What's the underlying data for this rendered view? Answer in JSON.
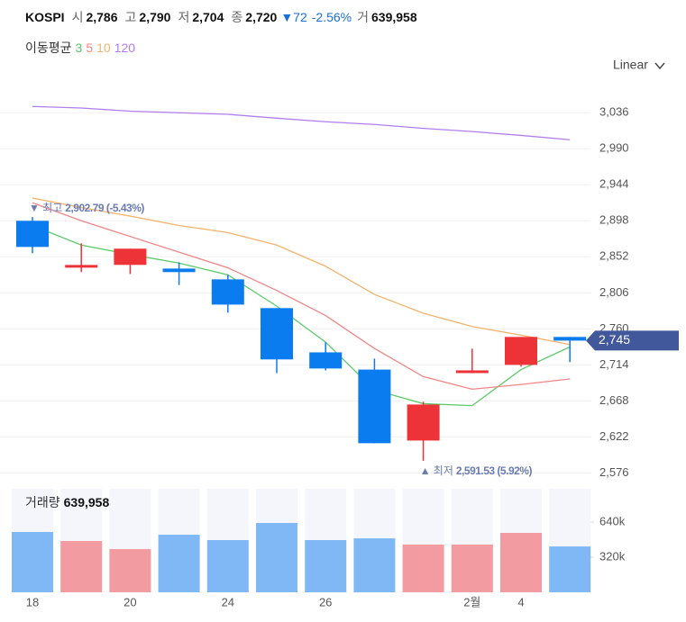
{
  "header": {
    "symbol": "KOSPI",
    "items": [
      {
        "label": "시",
        "value": "2,786"
      },
      {
        "label": "고",
        "value": "2,790"
      },
      {
        "label": "저",
        "value": "2,704"
      },
      {
        "label": "종",
        "value": "2,720"
      }
    ],
    "change": "▼72",
    "change_pct": "-2.56%",
    "volume_label": "거",
    "volume": "639,958"
  },
  "chart_data": {
    "type": "candlestick",
    "categories": [
      "18",
      null,
      "20",
      null,
      "24",
      null,
      "26",
      null,
      null,
      "2월",
      "4",
      null
    ],
    "open": [
      2898,
      2838.2,
      2841.7,
      2837,
      2823.2,
      2786.5,
      2730,
      2708,
      2617.4,
      2703.6,
      2714,
      2749.7
    ],
    "high": [
      2902.79,
      2869.3,
      2862.4,
      2845,
      2829,
      2786.5,
      2742.8,
      2722,
      2667,
      2734.7,
      2749.7,
      2749.7
    ],
    "low": [
      2856.6,
      2832.5,
      2830,
      2816,
      2780.7,
      2703.6,
      2707,
      2614,
      2591.53,
      2703.6,
      2711.7,
      2717.5
    ],
    "close": [
      2864.6,
      2841.6,
      2862.4,
      2832.5,
      2791,
      2721,
      2709.4,
      2614,
      2663.4,
      2707,
      2749.7,
      2745
    ],
    "up_color": "#ee3338",
    "down_color": "#0b7bf0",
    "ylim": [
      2565,
      3065
    ],
    "yticks": [
      {
        "value": 2576,
        "label": "2,576"
      },
      {
        "value": 2622,
        "label": "2,622"
      },
      {
        "value": 2668,
        "label": "2,668"
      },
      {
        "value": 2714,
        "label": "2,714"
      },
      {
        "value": 2760,
        "label": "2,760"
      },
      {
        "value": 2806,
        "label": "2,806"
      },
      {
        "value": 2852,
        "label": "2,852"
      },
      {
        "value": 2898,
        "label": "2,898"
      },
      {
        "value": 2944,
        "label": "2,944"
      },
      {
        "value": 2990,
        "label": "2,990"
      },
      {
        "value": 3036,
        "label": "3,036"
      }
    ],
    "grid": true,
    "scale_label": "Linear",
    "ma_label": "이동평균",
    "ma": [
      {
        "name": "3",
        "color": "#5cc96b",
        "values": [
          2892,
          2867,
          2855,
          2844,
          2829,
          2789,
          2743,
          2682,
          2664.5,
          2662,
          2708,
          2737
        ]
      },
      {
        "name": "5",
        "color": "#f28585",
        "values": [
          2921,
          2898,
          2878,
          2858,
          2838,
          2809,
          2777,
          2735,
          2699,
          2683,
          2689,
          2696
        ]
      },
      {
        "name": "10",
        "color": "#f2b46d",
        "values": [
          2927,
          2915,
          2904,
          2892,
          2883,
          2867,
          2840,
          2804,
          2780,
          2763,
          2752,
          2740
        ]
      },
      {
        "name": "120",
        "color": "#b07ef0",
        "values": [
          3044,
          3042,
          3038,
          3036,
          3034,
          3029,
          3024.5,
          3021,
          3016,
          3012,
          3007,
          3001.5
        ]
      }
    ],
    "annotations": [
      {
        "prefix": "▼ 최고",
        "text": "2,902.79 (-5.43%)",
        "value": 2902.79
      },
      {
        "prefix": "▲ 최저",
        "text": "2,591.53 (5.92%)",
        "value": 2591.53
      }
    ],
    "last_label": "2,745",
    "volume": {
      "label": "거래량",
      "value_label": "639,958",
      "values": [
        550000,
        468000,
        394000,
        525000,
        476000,
        632000,
        476000,
        492000,
        435000,
        435000,
        542000,
        418000
      ],
      "ylim": [
        0,
        944000
      ],
      "yticks": [
        {
          "value": 320000,
          "label": "320k"
        },
        {
          "value": 640000,
          "label": "640k"
        }
      ],
      "up_color": "#f29ba0",
      "down_color": "#80b8f5"
    }
  }
}
